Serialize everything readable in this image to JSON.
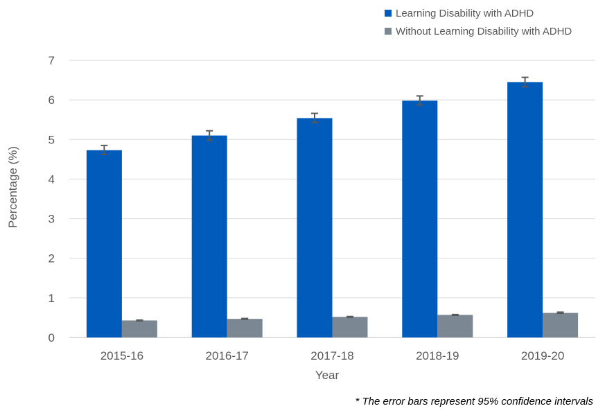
{
  "chart_data": {
    "type": "bar",
    "title": "",
    "xlabel": "Year",
    "ylabel": "Percentage (%)",
    "categories": [
      "2015-16",
      "2016-17",
      "2017-18",
      "2018-19",
      "2019-20"
    ],
    "ylim": [
      0,
      7
    ],
    "yticks": [
      "0",
      "1",
      "2",
      "3",
      "4",
      "5",
      "6",
      "7"
    ],
    "grid": true,
    "legend_position": "top-right",
    "series": [
      {
        "name": "Learning Disability with ADHD",
        "color": "#005bbb",
        "values": [
          4.73,
          5.1,
          5.54,
          5.98,
          6.45
        ],
        "error_low": [
          4.62,
          4.98,
          5.43,
          5.87,
          6.33
        ],
        "error_high": [
          4.85,
          5.22,
          5.66,
          6.1,
          6.57
        ]
      },
      {
        "name": "Without Learning Disability with ADHD",
        "color": "#7b8893",
        "values": [
          0.43,
          0.47,
          0.52,
          0.57,
          0.62
        ],
        "error_low": [
          0.42,
          0.46,
          0.51,
          0.56,
          0.61
        ],
        "error_high": [
          0.44,
          0.48,
          0.53,
          0.58,
          0.64
        ]
      }
    ],
    "error_bar_color": "#595959",
    "footnote": "* The error bars represent 95%  confidence intervals"
  }
}
